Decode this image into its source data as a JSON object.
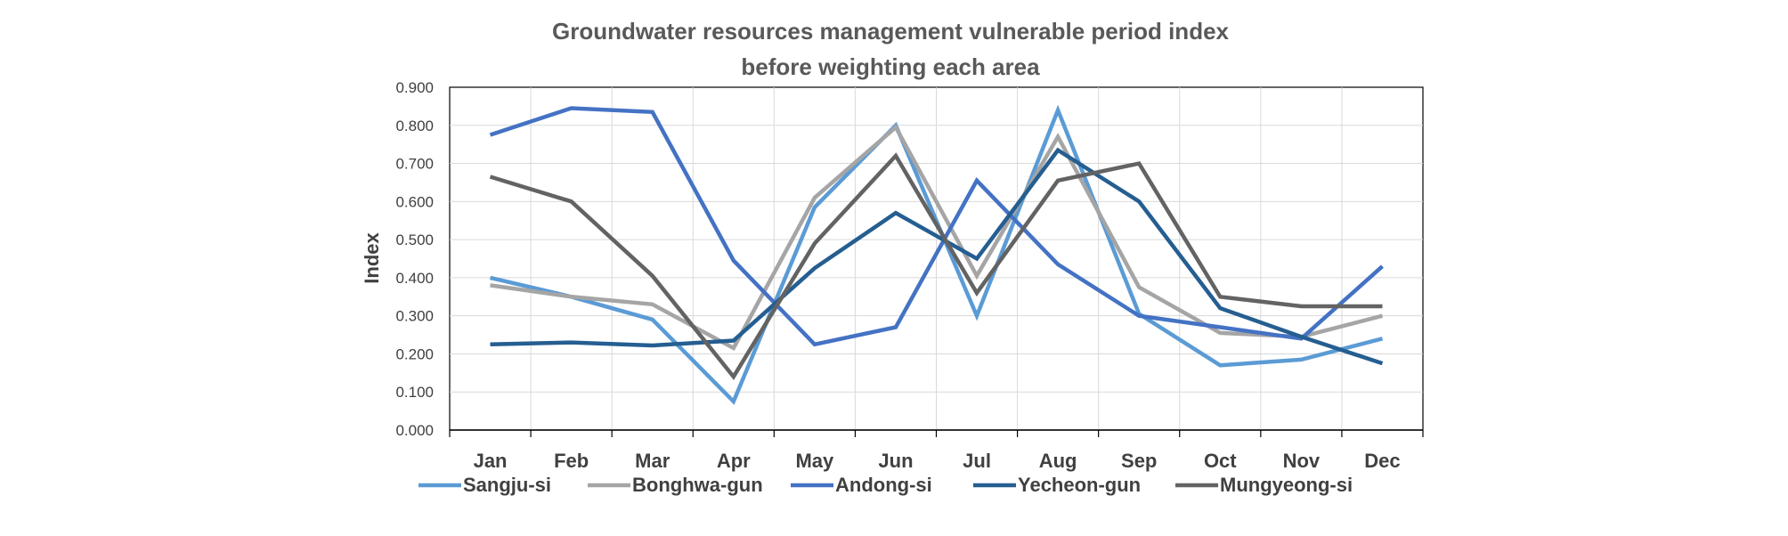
{
  "chart_data": {
    "type": "line",
    "title": "Groundwater resources management vulnerable period index",
    "subtitle": "before weighting each area",
    "xlabel": "",
    "ylabel": "Index",
    "ylim": [
      0,
      0.9
    ],
    "yticks": [
      "0.000",
      "0.100",
      "0.200",
      "0.300",
      "0.400",
      "0.500",
      "0.600",
      "0.700",
      "0.800",
      "0.900"
    ],
    "grid": true,
    "legend": "bottom",
    "categories": [
      "Jan",
      "Feb",
      "Mar",
      "Apr",
      "May",
      "Jun",
      "Jul",
      "Aug",
      "Sep",
      "Oct",
      "Nov",
      "Dec"
    ],
    "series": [
      {
        "name": "Sangju-si",
        "color": "#5B9BD5",
        "values": [
          0.4,
          0.35,
          0.29,
          0.075,
          0.585,
          0.8,
          0.3,
          0.84,
          0.305,
          0.17,
          0.185,
          0.24
        ]
      },
      {
        "name": "Bonghwa-gun",
        "color": "#A5A5A5",
        "values": [
          0.38,
          0.35,
          0.33,
          0.215,
          0.61,
          0.795,
          0.405,
          0.77,
          0.375,
          0.255,
          0.245,
          0.3
        ]
      },
      {
        "name": "Andong-si",
        "color": "#4472C4",
        "values": [
          0.775,
          0.845,
          0.835,
          0.445,
          0.225,
          0.27,
          0.655,
          0.435,
          0.3,
          0.27,
          0.24,
          0.43
        ]
      },
      {
        "name": "Yecheon-gun",
        "color": "#255E91",
        "values": [
          0.225,
          0.23,
          0.222,
          0.235,
          0.425,
          0.57,
          0.45,
          0.735,
          0.6,
          0.32,
          0.245,
          0.175
        ]
      },
      {
        "name": "Mungyeong-si",
        "color": "#636363",
        "values": [
          0.665,
          0.6,
          0.405,
          0.14,
          0.49,
          0.72,
          0.36,
          0.655,
          0.7,
          0.35,
          0.325,
          0.325
        ]
      }
    ]
  }
}
